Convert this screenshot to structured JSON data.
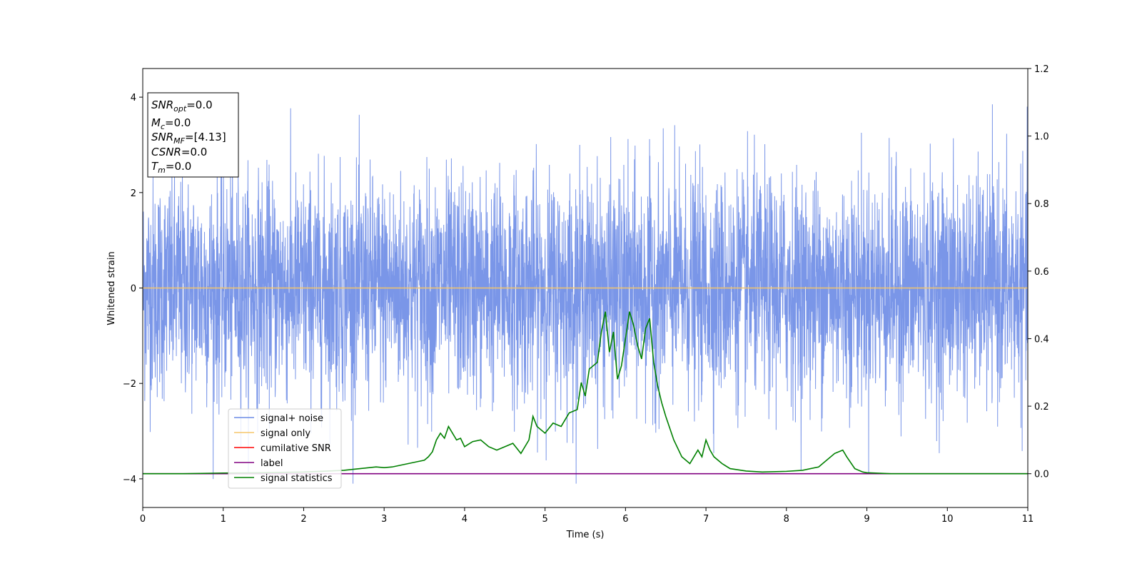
{
  "chart_data": {
    "type": "line",
    "xlabel": "Time (s)",
    "ylabel": "Whitened strain",
    "xlim": [
      0,
      11
    ],
    "ylim": [
      -4.6,
      4.6
    ],
    "y2lim": [
      -0.1,
      1.2
    ],
    "xticks": [
      "0",
      "1",
      "2",
      "3",
      "4",
      "5",
      "6",
      "7",
      "8",
      "9",
      "10",
      "11"
    ],
    "yticks": [
      "4",
      "2",
      "0",
      "−2",
      "−4"
    ],
    "y2ticks": [
      "1.2",
      "1.0",
      "0.8",
      "0.6",
      "0.4",
      "0.2",
      "0.0"
    ],
    "legend": {
      "location": "lower-left",
      "entries": [
        {
          "label": "signal+ noise",
          "color": "#6b8be6"
        },
        {
          "label": "signal only",
          "color": "#f5c56a"
        },
        {
          "label": "cumilative SNR",
          "color": "#ff0000"
        },
        {
          "label": "label",
          "color": "#800080"
        },
        {
          "label": "signal statistics",
          "color": "#008000"
        }
      ]
    },
    "info_box": [
      {
        "name": "SNR",
        "sub": "opt",
        "value": "=0.0"
      },
      {
        "name": "M",
        "sub": "c",
        "value": "=0.0"
      },
      {
        "name": "SNR",
        "sub": "MF",
        "value": "=[4.13]"
      },
      {
        "name": "CSNR",
        "sub": "",
        "value": "=0.0"
      },
      {
        "name": "T",
        "sub": "m",
        "value": "=0.0"
      }
    ],
    "series": [
      {
        "name": "signal+ noise",
        "axis": "left",
        "style": "gaussian noise, std ~1.15, range approx -4.1 to 3.8, sampled over 0-11 s",
        "color": "#6b8be6"
      },
      {
        "name": "signal only",
        "axis": "left",
        "color": "#f5c56a",
        "x": [
          0,
          11
        ],
        "y": [
          0,
          0
        ]
      },
      {
        "name": "label",
        "axis": "right",
        "color": "#800080",
        "x": [
          0,
          11
        ],
        "y": [
          0,
          0
        ]
      },
      {
        "name": "signal statistics",
        "axis": "right",
        "color": "#008000",
        "x": [
          0,
          0.5,
          1,
          1.5,
          2,
          2.3,
          2.5,
          2.7,
          2.9,
          3.0,
          3.1,
          3.2,
          3.3,
          3.4,
          3.5,
          3.55,
          3.6,
          3.65,
          3.7,
          3.75,
          3.8,
          3.85,
          3.9,
          3.95,
          4.0,
          4.1,
          4.2,
          4.3,
          4.4,
          4.5,
          4.6,
          4.7,
          4.8,
          4.85,
          4.9,
          5.0,
          5.1,
          5.2,
          5.3,
          5.4,
          5.45,
          5.5,
          5.55,
          5.6,
          5.65,
          5.7,
          5.75,
          5.8,
          5.85,
          5.9,
          5.95,
          6.0,
          6.05,
          6.1,
          6.15,
          6.2,
          6.25,
          6.3,
          6.35,
          6.4,
          6.45,
          6.5,
          6.6,
          6.7,
          6.8,
          6.9,
          6.95,
          7.0,
          7.05,
          7.1,
          7.2,
          7.3,
          7.5,
          7.7,
          8.0,
          8.2,
          8.4,
          8.6,
          8.7,
          8.75,
          8.85,
          8.95,
          9.0,
          9.3,
          10.0,
          11.0
        ],
        "y": [
          0.0,
          0.0,
          0.002,
          0.003,
          0.005,
          0.008,
          0.01,
          0.015,
          0.02,
          0.018,
          0.02,
          0.025,
          0.03,
          0.035,
          0.04,
          0.05,
          0.065,
          0.1,
          0.12,
          0.105,
          0.14,
          0.12,
          0.1,
          0.105,
          0.08,
          0.095,
          0.1,
          0.08,
          0.07,
          0.08,
          0.09,
          0.06,
          0.1,
          0.17,
          0.14,
          0.12,
          0.15,
          0.14,
          0.18,
          0.19,
          0.27,
          0.23,
          0.31,
          0.32,
          0.33,
          0.42,
          0.48,
          0.36,
          0.42,
          0.28,
          0.32,
          0.4,
          0.48,
          0.44,
          0.38,
          0.34,
          0.43,
          0.46,
          0.33,
          0.26,
          0.21,
          0.17,
          0.1,
          0.05,
          0.03,
          0.07,
          0.05,
          0.1,
          0.07,
          0.05,
          0.03,
          0.015,
          0.008,
          0.005,
          0.007,
          0.01,
          0.02,
          0.06,
          0.07,
          0.05,
          0.015,
          0.005,
          0.003,
          0.0,
          0.0,
          0.0
        ]
      }
    ]
  }
}
